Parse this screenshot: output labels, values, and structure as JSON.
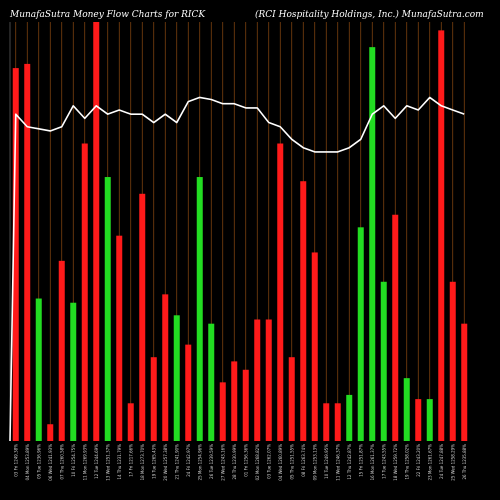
{
  "header": {
    "left_title": "MunafaSutra  Money Flow  Charts for RICK",
    "right_title": "(RCI Hospitality Holdings, Inc.) MunafaSutra.com"
  },
  "colors": {
    "background": "#000000",
    "gridline": "#8b4a12",
    "up_bar": "#22dd22",
    "down_bar": "#ff1a1a",
    "line": "#ffffff"
  },
  "chart_data": {
    "type": "bar",
    "title": "MunafaSutra  Money Flow  Charts for RICK",
    "subtitle": "(RCI Hospitality Holdings, Inc.) MunafaSutra.com",
    "bars": [
      {
        "label": "03 Fri 1249.38%",
        "height": 0.89,
        "dir": "down"
      },
      {
        "label": "04 Mon 1253.89%",
        "height": 0.9,
        "dir": "down"
      },
      {
        "label": "05 Tue 1236.96%",
        "height": 0.34,
        "dir": "up"
      },
      {
        "label": "06 Wed 1241.93%",
        "height": 0.04,
        "dir": "down"
      },
      {
        "label": "07 Thu 1260.58%",
        "height": 0.43,
        "dir": "down"
      },
      {
        "label": "10 Fri 1254.75%",
        "height": 0.33,
        "dir": "up"
      },
      {
        "label": "11 Mon 1269.93%",
        "height": 0.71,
        "dir": "down"
      },
      {
        "label": "12 Tue 1244.69%",
        "height": 1.0,
        "dir": "down"
      },
      {
        "label": "13 Wed 1251.37%",
        "height": 0.63,
        "dir": "up"
      },
      {
        "label": "14 Thu 1231.79%",
        "height": 0.49,
        "dir": "down"
      },
      {
        "label": "17 Fri 1217.66%",
        "height": 0.09,
        "dir": "down"
      },
      {
        "label": "18 Mon 1273.70%",
        "height": 0.59,
        "dir": "down"
      },
      {
        "label": "19 Tue 1265.43%",
        "height": 0.2,
        "dir": "down"
      },
      {
        "label": "20 Wed 1257.38%",
        "height": 0.35,
        "dir": "down"
      },
      {
        "label": "21 Thu 1241.90%",
        "height": 0.3,
        "dir": "up"
      },
      {
        "label": "24 Fri 1242.97%",
        "height": 0.23,
        "dir": "down"
      },
      {
        "label": "25 Mon 1254.96%",
        "height": 0.63,
        "dir": "up"
      },
      {
        "label": "26 Tue 1239.59%",
        "height": 0.28,
        "dir": "up"
      },
      {
        "label": "27 Wed 1243.16%",
        "height": 0.14,
        "dir": "down"
      },
      {
        "label": "28 Thu 1230.99%",
        "height": 0.19,
        "dir": "down"
      },
      {
        "label": "01 Fri 1256.36%",
        "height": 0.17,
        "dir": "down"
      },
      {
        "label": "02 Mon 1268.82%",
        "height": 0.29,
        "dir": "down"
      },
      {
        "label": "03 Tue 1262.07%",
        "height": 0.29,
        "dir": "down"
      },
      {
        "label": "04 Wed 1260.89%",
        "height": 0.71,
        "dir": "down"
      },
      {
        "label": "05 Thu 1251.55%",
        "height": 0.2,
        "dir": "down"
      },
      {
        "label": "08 Fri 1263.74%",
        "height": 0.62,
        "dir": "down"
      },
      {
        "label": "09 Mon 1253.13%",
        "height": 0.45,
        "dir": "down"
      },
      {
        "label": "10 Tue 1249.95%",
        "height": 0.09,
        "dir": "down"
      },
      {
        "label": "11 Wed 1246.37%",
        "height": 0.09,
        "dir": "down"
      },
      {
        "label": "12 Thu 1242.87%",
        "height": 0.11,
        "dir": "up"
      },
      {
        "label": "15 Fri 1251.87%",
        "height": 0.51,
        "dir": "up"
      },
      {
        "label": "16 Mon 1261.37%",
        "height": 0.94,
        "dir": "up"
      },
      {
        "label": "17 Tue 1243.55%",
        "height": 0.38,
        "dir": "up"
      },
      {
        "label": "18 Wed 1259.72%",
        "height": 0.54,
        "dir": "down"
      },
      {
        "label": "19 Thu 1258.02%",
        "height": 0.15,
        "dir": "up"
      },
      {
        "label": "22 Fri 1243.20%",
        "height": 0.1,
        "dir": "down"
      },
      {
        "label": "23 Mon 1261.67%",
        "height": 0.1,
        "dir": "up"
      },
      {
        "label": "24 Tue 1247.88%",
        "height": 0.98,
        "dir": "down"
      },
      {
        "label": "25 Wed 1258.29%",
        "height": 0.38,
        "dir": "down"
      },
      {
        "label": "26 Thu 1235.88%",
        "height": 0.28,
        "dir": "down"
      }
    ],
    "line_values": [
      0.83,
      0.78,
      0.75,
      0.745,
      0.74,
      0.75,
      0.8,
      0.77,
      0.8,
      0.78,
      0.79,
      0.78,
      0.78,
      0.76,
      0.78,
      0.76,
      0.81,
      0.82,
      0.815,
      0.805,
      0.805,
      0.795,
      0.795,
      0.76,
      0.75,
      0.72,
      0.7,
      0.69,
      0.69,
      0.69,
      0.7,
      0.72,
      0.78,
      0.8,
      0.77,
      0.8,
      0.79,
      0.82,
      0.8,
      0.79,
      0.78
    ],
    "ylim": [
      0,
      1
    ],
    "grid": true,
    "legend": "none"
  }
}
